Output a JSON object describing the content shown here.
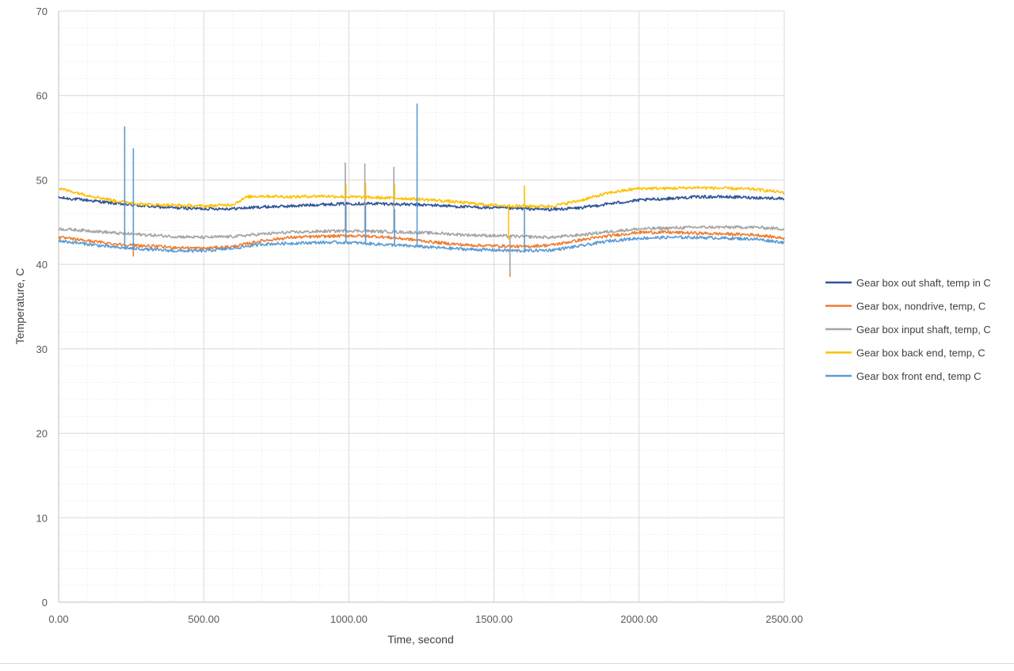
{
  "chart_data": {
    "type": "line",
    "title": "",
    "xlabel": "Time, second",
    "ylabel": "Temperature, C",
    "xlim": [
      0,
      2500
    ],
    "ylim": [
      0,
      70
    ],
    "x_ticks": [
      0,
      500,
      1000,
      1500,
      2000,
      2500
    ],
    "x_tick_labels": [
      "0.00",
      "500.00",
      "1000.00",
      "1500.00",
      "2000.00",
      "2500.00"
    ],
    "y_ticks": [
      0,
      10,
      20,
      30,
      40,
      50,
      60,
      70
    ],
    "y_tick_labels": [
      "0",
      "10",
      "20",
      "30",
      "40",
      "50",
      "60",
      "70"
    ],
    "grid": "major and minor",
    "legend_position": "right",
    "series": [
      {
        "name": "Gear box out shaft, temp in C",
        "color": "#2F5597",
        "points": [
          [
            0,
            47.9
          ],
          [
            100,
            47.6
          ],
          [
            200,
            47.2
          ],
          [
            300,
            46.9
          ],
          [
            400,
            46.7
          ],
          [
            500,
            46.6
          ],
          [
            600,
            46.6
          ],
          [
            700,
            46.8
          ],
          [
            800,
            46.9
          ],
          [
            900,
            47.1
          ],
          [
            1000,
            47.2
          ],
          [
            1100,
            47.2
          ],
          [
            1200,
            47.1
          ],
          [
            1300,
            47.0
          ],
          [
            1400,
            46.8
          ],
          [
            1500,
            46.7
          ],
          [
            1600,
            46.6
          ],
          [
            1700,
            46.5
          ],
          [
            1800,
            46.7
          ],
          [
            1900,
            47.2
          ],
          [
            2000,
            47.6
          ],
          [
            2100,
            47.8
          ],
          [
            2200,
            48.0
          ],
          [
            2300,
            48.0
          ],
          [
            2400,
            47.9
          ],
          [
            2500,
            47.8
          ]
        ],
        "spikes": []
      },
      {
        "name": "Gear box, nondrive, temp, C",
        "color": "#ED7D31",
        "points": [
          [
            0,
            43.2
          ],
          [
            100,
            42.8
          ],
          [
            200,
            42.4
          ],
          [
            300,
            42.2
          ],
          [
            400,
            42.0
          ],
          [
            500,
            41.9
          ],
          [
            600,
            42.1
          ],
          [
            700,
            42.8
          ],
          [
            800,
            43.2
          ],
          [
            900,
            43.3
          ],
          [
            1000,
            43.4
          ],
          [
            1100,
            43.3
          ],
          [
            1200,
            43.0
          ],
          [
            1300,
            42.6
          ],
          [
            1400,
            42.3
          ],
          [
            1500,
            42.2
          ],
          [
            1600,
            42.1
          ],
          [
            1700,
            42.3
          ],
          [
            1800,
            42.9
          ],
          [
            1900,
            43.4
          ],
          [
            2000,
            43.8
          ],
          [
            2100,
            43.8
          ],
          [
            2200,
            43.7
          ],
          [
            2300,
            43.6
          ],
          [
            2400,
            43.5
          ],
          [
            2500,
            43.1
          ]
        ],
        "spikes": [
          [
            258,
            41.0
          ],
          [
            1555,
            38.6
          ]
        ]
      },
      {
        "name": "Gear box input shaft, temp, C",
        "color": "#A5A5A5",
        "points": [
          [
            0,
            44.2
          ],
          [
            100,
            44.0
          ],
          [
            200,
            43.7
          ],
          [
            300,
            43.5
          ],
          [
            400,
            43.3
          ],
          [
            500,
            43.2
          ],
          [
            600,
            43.3
          ],
          [
            700,
            43.6
          ],
          [
            800,
            43.8
          ],
          [
            900,
            43.9
          ],
          [
            1000,
            44.0
          ],
          [
            1100,
            43.9
          ],
          [
            1200,
            43.8
          ],
          [
            1300,
            43.7
          ],
          [
            1400,
            43.5
          ],
          [
            1500,
            43.4
          ],
          [
            1600,
            43.3
          ],
          [
            1700,
            43.2
          ],
          [
            1800,
            43.5
          ],
          [
            1900,
            43.9
          ],
          [
            2000,
            44.2
          ],
          [
            2100,
            44.3
          ],
          [
            2200,
            44.4
          ],
          [
            2300,
            44.4
          ],
          [
            2400,
            44.4
          ],
          [
            2500,
            44.2
          ]
        ],
        "spikes": [
          [
            988,
            52.0
          ],
          [
            1055,
            51.9
          ],
          [
            1155,
            51.5
          ],
          [
            1555,
            38.9
          ]
        ]
      },
      {
        "name": "Gear box back end, temp, C",
        "color": "#FFC000",
        "points": [
          [
            0,
            49.0
          ],
          [
            100,
            48.2
          ],
          [
            200,
            47.5
          ],
          [
            300,
            47.1
          ],
          [
            400,
            47.0
          ],
          [
            500,
            46.9
          ],
          [
            600,
            47.1
          ],
          [
            650,
            48.0
          ],
          [
            700,
            48.1
          ],
          [
            800,
            48.0
          ],
          [
            900,
            48.1
          ],
          [
            1000,
            48.0
          ],
          [
            1100,
            47.9
          ],
          [
            1200,
            47.8
          ],
          [
            1300,
            47.6
          ],
          [
            1400,
            47.3
          ],
          [
            1500,
            47.0
          ],
          [
            1600,
            46.9
          ],
          [
            1700,
            46.9
          ],
          [
            1800,
            47.6
          ],
          [
            1900,
            48.5
          ],
          [
            2000,
            49.0
          ],
          [
            2100,
            49.0
          ],
          [
            2200,
            49.1
          ],
          [
            2300,
            49.0
          ],
          [
            2400,
            48.9
          ],
          [
            2500,
            48.5
          ]
        ],
        "spikes": [
          [
            990,
            49.5
          ],
          [
            1058,
            49.6
          ],
          [
            1158,
            49.5
          ],
          [
            1550,
            43.0
          ],
          [
            1605,
            49.3
          ]
        ]
      },
      {
        "name": "Gear box front end, temp C",
        "color": "#5B9BD5",
        "points": [
          [
            0,
            42.8
          ],
          [
            100,
            42.4
          ],
          [
            200,
            42.0
          ],
          [
            300,
            41.8
          ],
          [
            400,
            41.6
          ],
          [
            500,
            41.6
          ],
          [
            600,
            41.9
          ],
          [
            700,
            42.4
          ],
          [
            800,
            42.5
          ],
          [
            900,
            42.6
          ],
          [
            1000,
            42.6
          ],
          [
            1100,
            42.4
          ],
          [
            1200,
            42.2
          ],
          [
            1300,
            42.0
          ],
          [
            1400,
            41.8
          ],
          [
            1500,
            41.7
          ],
          [
            1600,
            41.6
          ],
          [
            1700,
            41.7
          ],
          [
            1800,
            42.2
          ],
          [
            1900,
            42.8
          ],
          [
            2000,
            43.1
          ],
          [
            2100,
            43.2
          ],
          [
            2200,
            43.2
          ],
          [
            2300,
            43.1
          ],
          [
            2400,
            43.0
          ],
          [
            2500,
            42.6
          ]
        ],
        "spikes": [
          [
            228,
            56.3
          ],
          [
            258,
            53.7
          ],
          [
            990,
            47.0
          ],
          [
            1058,
            47.0
          ],
          [
            1158,
            46.5
          ],
          [
            1235,
            59.0
          ],
          [
            1605,
            46.6
          ]
        ]
      }
    ]
  }
}
